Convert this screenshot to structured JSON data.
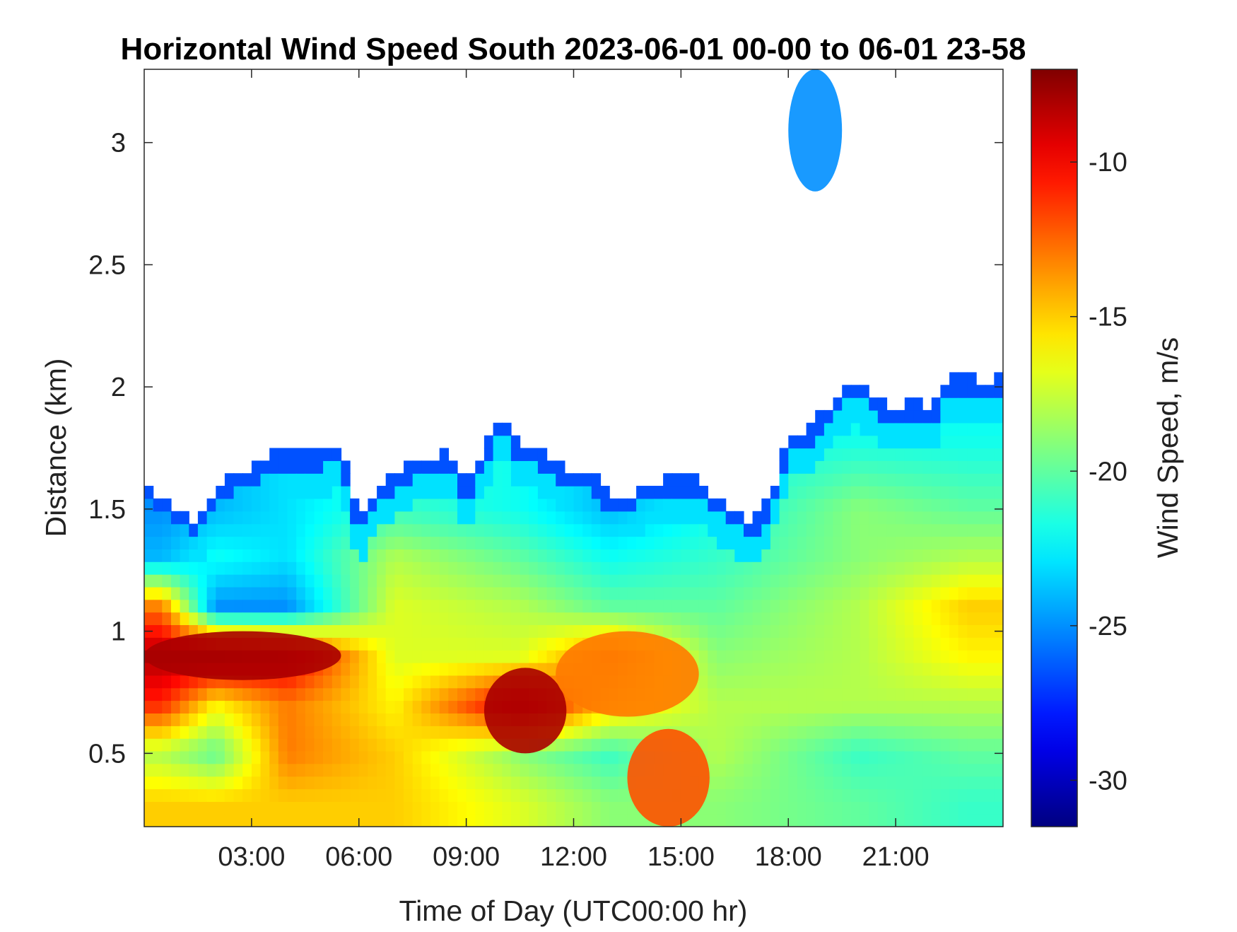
{
  "chart_data": {
    "type": "heatmap",
    "title": "Horizontal Wind Speed South 2023-06-01 00-00 to 06-01 23-58",
    "xlabel": "Time of Day (UTC00:00 hr)",
    "ylabel": "Distance (km)",
    "colorbar_label": "Wind Speed, m/s",
    "colormap": "jet",
    "x_range_hours": [
      0,
      24
    ],
    "y_range_km": [
      0.2,
      3.3
    ],
    "color_range": [
      -31.5,
      -7
    ],
    "x_ticks": [
      {
        "value": 3,
        "label": "03:00"
      },
      {
        "value": 6,
        "label": "06:00"
      },
      {
        "value": 9,
        "label": "09:00"
      },
      {
        "value": 12,
        "label": "12:00"
      },
      {
        "value": 15,
        "label": "15:00"
      },
      {
        "value": 18,
        "label": "18:00"
      },
      {
        "value": 21,
        "label": "21:00"
      }
    ],
    "y_ticks": [
      {
        "value": 0.5,
        "label": "0.5"
      },
      {
        "value": 1,
        "label": "1"
      },
      {
        "value": 1.5,
        "label": "1.5"
      },
      {
        "value": 2,
        "label": "2"
      },
      {
        "value": 2.5,
        "label": "2.5"
      },
      {
        "value": 3,
        "label": "3"
      }
    ],
    "colorbar_ticks": [
      {
        "value": -10,
        "label": "-10"
      },
      {
        "value": -15,
        "label": "-15"
      },
      {
        "value": -20,
        "label": "-20"
      },
      {
        "value": -25,
        "label": "-25"
      },
      {
        "value": -30,
        "label": "-30"
      }
    ],
    "valid_data_top_km": [
      [
        0.0,
        1.6
      ],
      [
        0.5,
        1.55
      ],
      [
        1.0,
        1.5
      ],
      [
        1.5,
        1.45
      ],
      [
        2.0,
        1.6
      ],
      [
        2.5,
        1.65
      ],
      [
        3.0,
        1.66
      ],
      [
        3.5,
        1.72
      ],
      [
        4.0,
        1.74
      ],
      [
        4.5,
        1.74
      ],
      [
        5.0,
        1.74
      ],
      [
        5.5,
        1.76
      ],
      [
        6.0,
        1.45
      ],
      [
        6.5,
        1.6
      ],
      [
        7.0,
        1.65
      ],
      [
        7.5,
        1.7
      ],
      [
        8.0,
        1.72
      ],
      [
        8.5,
        1.73
      ],
      [
        9.0,
        1.6
      ],
      [
        9.5,
        1.75
      ],
      [
        10.0,
        1.9
      ],
      [
        10.5,
        1.75
      ],
      [
        11.0,
        1.75
      ],
      [
        11.5,
        1.7
      ],
      [
        12.0,
        1.65
      ],
      [
        12.5,
        1.65
      ],
      [
        13.0,
        1.55
      ],
      [
        13.5,
        1.55
      ],
      [
        14.0,
        1.6
      ],
      [
        14.5,
        1.62
      ],
      [
        15.0,
        1.63
      ],
      [
        15.5,
        1.62
      ],
      [
        16.0,
        1.55
      ],
      [
        16.5,
        1.5
      ],
      [
        17.0,
        1.45
      ],
      [
        17.5,
        1.55
      ],
      [
        18.0,
        1.8
      ],
      [
        18.5,
        1.82
      ],
      [
        19.0,
        1.9
      ],
      [
        19.5,
        2.0
      ],
      [
        20.0,
        2.02
      ],
      [
        20.5,
        1.95
      ],
      [
        21.0,
        1.9
      ],
      [
        21.5,
        1.95
      ],
      [
        22.0,
        1.9
      ],
      [
        22.5,
        2.05
      ],
      [
        23.0,
        2.05
      ],
      [
        23.5,
        2.0
      ],
      [
        24.0,
        2.05
      ]
    ],
    "profile_samples_ms": [
      {
        "hour": 0.5,
        "heights_km": [
          0.3,
          0.5,
          0.7,
          0.9,
          1.1,
          1.3,
          1.5
        ],
        "speeds": [
          -15,
          -18,
          -11,
          -8,
          -13,
          -24,
          -25
        ]
      },
      {
        "hour": 2.0,
        "heights_km": [
          0.3,
          0.5,
          0.7,
          0.9,
          1.1,
          1.3,
          1.5
        ],
        "speeds": [
          -15,
          -20,
          -16,
          -8,
          -25,
          -22,
          -24
        ]
      },
      {
        "hour": 4.0,
        "heights_km": [
          0.3,
          0.5,
          0.7,
          0.9,
          1.1,
          1.3,
          1.5
        ],
        "speeds": [
          -15,
          -13,
          -13,
          -9,
          -25,
          -23,
          -23
        ]
      },
      {
        "hour": 7.0,
        "heights_km": [
          0.3,
          0.5,
          0.7,
          0.9,
          1.1,
          1.3,
          1.5
        ],
        "speeds": [
          -15,
          -15,
          -16,
          -17,
          -17,
          -18,
          -21
        ]
      },
      {
        "hour": 10.5,
        "heights_km": [
          0.3,
          0.5,
          0.7,
          0.9,
          1.1,
          1.3,
          1.5
        ],
        "speeds": [
          -17,
          -19,
          -9,
          -17,
          -18,
          -20,
          -22
        ]
      },
      {
        "hour": 13.0,
        "heights_km": [
          0.3,
          0.5,
          0.7,
          0.9,
          1.1,
          1.3,
          1.5
        ],
        "speeds": [
          -19,
          -21,
          -15,
          -13,
          -20,
          -22,
          -24
        ]
      },
      {
        "hour": 16.0,
        "heights_km": [
          0.3,
          0.5,
          0.7,
          0.9,
          1.1,
          1.3,
          1.5
        ],
        "speeds": [
          -19,
          -18,
          -18,
          -19,
          -20,
          -21,
          -22
        ]
      },
      {
        "hour": 20.0,
        "heights_km": [
          0.3,
          0.5,
          0.7,
          0.9,
          1.1,
          1.3,
          1.5,
          1.8
        ],
        "speeds": [
          -20,
          -21,
          -18,
          -18,
          -18,
          -19,
          -19,
          -22
        ]
      },
      {
        "hour": 23.0,
        "heights_km": [
          0.3,
          0.5,
          0.7,
          0.9,
          1.1,
          1.3,
          1.5,
          1.8
        ],
        "speeds": [
          -21,
          -20,
          -18,
          -16,
          -15,
          -18,
          -20,
          -22
        ]
      }
    ],
    "features": [
      {
        "name": "low-level jet core",
        "hours": [
          0,
          5.5
        ],
        "heights_km": [
          0.8,
          1.0
        ],
        "speed_ms": -8
      },
      {
        "name": "jet core",
        "hours": [
          9.5,
          11.8
        ],
        "heights_km": [
          0.5,
          0.85
        ],
        "speed_ms": -8
      },
      {
        "name": "orange band",
        "hours": [
          11.5,
          15.5
        ],
        "heights_km": [
          0.65,
          1.0
        ],
        "speed_ms": -13
      },
      {
        "name": "orange plume",
        "hours": [
          13.5,
          15.8
        ],
        "heights_km": [
          0.2,
          0.6
        ],
        "speed_ms": -12
      },
      {
        "name": "upper-level scattered returns",
        "hours": [
          18.0,
          19.5
        ],
        "heights_km": [
          2.8,
          3.3
        ],
        "speed_ms": -25
      }
    ]
  }
}
